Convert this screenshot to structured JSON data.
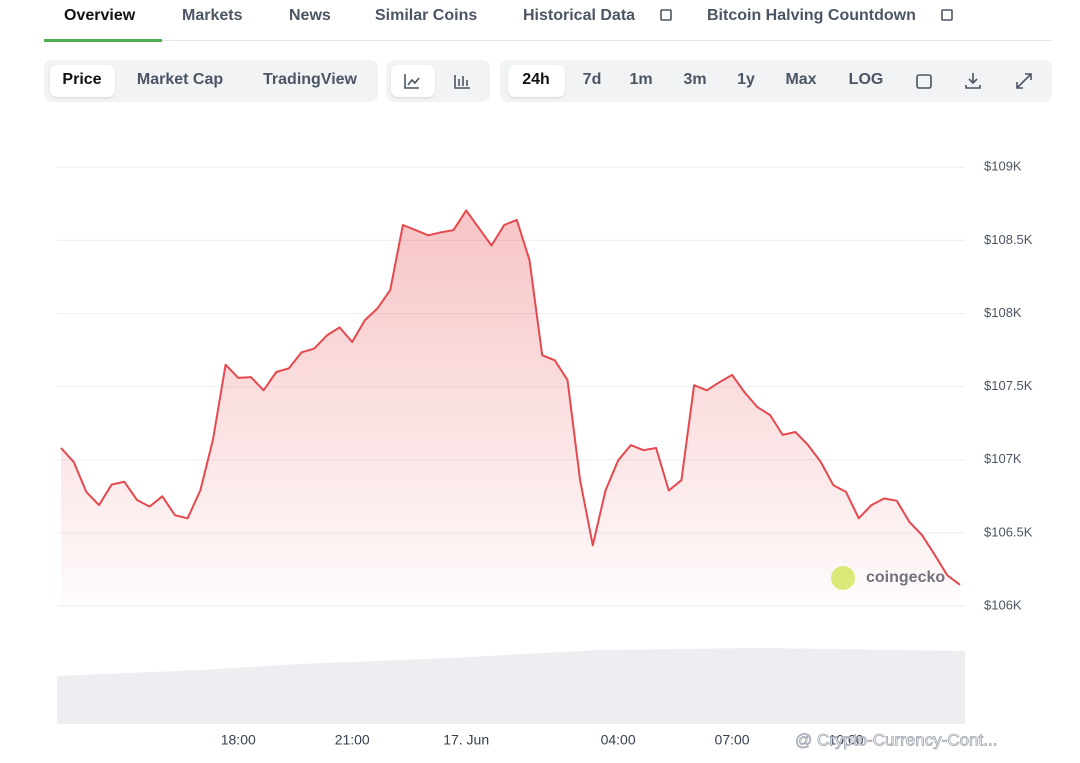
{
  "tabs": [
    "Overview",
    "Markets",
    "News",
    "Similar Coins",
    "Historical Data",
    "Bitcoin Halving Countdown"
  ],
  "chart_views": [
    "Price",
    "Market Cap",
    "TradingView"
  ],
  "ranges": [
    "24h",
    "7d",
    "1m",
    "3m",
    "1y",
    "Max",
    "LOG"
  ],
  "watermark": "coingecko",
  "overlay_text": "@ Crypto-Currency-Cont...",
  "chart_data": {
    "type": "line",
    "categories": [
      null,
      null,
      null,
      null,
      null,
      null,
      null,
      null,
      null,
      null,
      null,
      null,
      null,
      null,
      "18:00",
      null,
      null,
      null,
      null,
      null,
      null,
      null,
      null,
      "21:00",
      null,
      null,
      null,
      null,
      null,
      null,
      null,
      null,
      "17. Jun",
      null,
      null,
      null,
      null,
      null,
      null,
      null,
      null,
      null,
      null,
      null,
      "04:00",
      null,
      null,
      null,
      null,
      null,
      null,
      null,
      null,
      "07:00",
      null,
      null,
      null,
      null,
      null,
      null,
      null,
      null,
      "10:00",
      null,
      null,
      null,
      null,
      null,
      null,
      null,
      null,
      null
    ],
    "series": [
      {
        "color": "#e5484d",
        "values": [
          107080,
          106985,
          106780,
          106690,
          106830,
          106850,
          106725,
          106680,
          106750,
          106620,
          106600,
          106790,
          107135,
          107650,
          107560,
          107565,
          107475,
          107600,
          107625,
          107735,
          107760,
          107850,
          107905,
          107805,
          107955,
          108035,
          108160,
          108605,
          108570,
          108535,
          108555,
          108570,
          108705,
          108585,
          108465,
          108605,
          108640,
          108365,
          107715,
          107680,
          107545,
          106860,
          106415,
          106790,
          106995,
          107100,
          107065,
          107080,
          106790,
          106860,
          107510,
          107475,
          107530,
          107580,
          107460,
          107360,
          107305,
          107170,
          107190,
          107100,
          106985,
          106825,
          106780,
          106600,
          106690,
          106735,
          106720,
          106575,
          106485,
          106350,
          106210,
          106145
        ]
      }
    ],
    "ylim": [
      106000,
      109200
    ],
    "yticks": [
      {
        "value": 106000,
        "label": "$106K"
      },
      {
        "value": 106500,
        "label": "$106.5K"
      },
      {
        "value": 107000,
        "label": "$107K"
      },
      {
        "value": 107500,
        "label": "$107.5K"
      },
      {
        "value": 108000,
        "label": "$108K"
      },
      {
        "value": 108500,
        "label": "$108.5K"
      },
      {
        "value": 109000,
        "label": "$109K"
      }
    ],
    "grid": true
  }
}
